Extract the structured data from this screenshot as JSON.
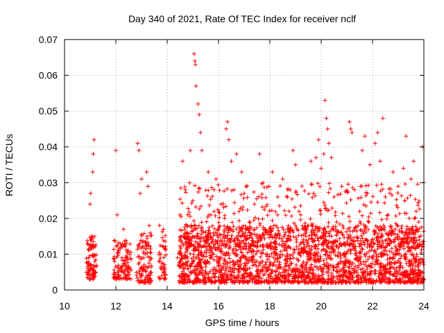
{
  "chart_data": {
    "type": "scatter",
    "title": "Day 340 of 2021, Rate Of TEC Index for receiver nclf",
    "xlabel": "GPS time / hours",
    "ylabel": "ROTI / TECUs",
    "xlim": [
      10,
      24
    ],
    "ylim": [
      0,
      0.07
    ],
    "x_ticks": [
      10,
      12,
      14,
      16,
      18,
      20,
      22,
      24
    ],
    "x_tick_labels": [
      "10",
      "12",
      "14",
      "16",
      "18",
      "20",
      "22",
      "24"
    ],
    "y_ticks": [
      0,
      0.01,
      0.02,
      0.03,
      0.04,
      0.05,
      0.06,
      0.07
    ],
    "y_tick_labels": [
      "0",
      "0.01",
      "0.02",
      "0.03",
      "0.04",
      "0.05",
      "0.06",
      "0.07"
    ],
    "grid": true,
    "marker": "+",
    "color": "#ff0000",
    "series": [
      {
        "name": "ROTI",
        "points": [
          [
            10.9,
            0.006
          ],
          [
            10.95,
            0.009
          ],
          [
            11.0,
            0.024
          ],
          [
            11.02,
            0.027
          ],
          [
            11.05,
            0.015
          ],
          [
            11.08,
            0.012
          ],
          [
            11.1,
            0.033
          ],
          [
            11.12,
            0.038
          ],
          [
            11.15,
            0.042
          ],
          [
            11.18,
            0.008
          ],
          [
            11.2,
            0.005
          ],
          [
            12.0,
            0.039
          ],
          [
            12.05,
            0.021
          ],
          [
            11.95,
            0.008
          ],
          [
            12.1,
            0.006
          ],
          [
            12.2,
            0.012
          ],
          [
            12.3,
            0.017
          ],
          [
            12.4,
            0.009
          ],
          [
            12.5,
            0.005
          ],
          [
            12.85,
            0.041
          ],
          [
            12.9,
            0.039
          ],
          [
            12.95,
            0.027
          ],
          [
            13.0,
            0.031
          ],
          [
            13.05,
            0.012
          ],
          [
            13.1,
            0.007
          ],
          [
            13.2,
            0.033
          ],
          [
            13.25,
            0.029
          ],
          [
            13.3,
            0.018
          ],
          [
            13.35,
            0.005
          ],
          [
            13.7,
            0.018
          ],
          [
            13.75,
            0.01
          ],
          [
            13.8,
            0.004
          ],
          [
            13.85,
            0.017
          ],
          [
            13.9,
            0.007
          ],
          [
            14.4,
            0.009
          ],
          [
            14.5,
            0.021
          ],
          [
            14.6,
            0.036
          ],
          [
            14.7,
            0.028
          ],
          [
            14.8,
            0.015
          ],
          [
            14.9,
            0.039
          ],
          [
            15.0,
            0.025
          ],
          [
            15.05,
            0.066
          ],
          [
            15.08,
            0.064
          ],
          [
            15.1,
            0.063
          ],
          [
            15.12,
            0.057
          ],
          [
            15.2,
            0.052
          ],
          [
            15.25,
            0.049
          ],
          [
            15.3,
            0.044
          ],
          [
            15.35,
            0.039
          ],
          [
            15.4,
            0.016
          ],
          [
            15.5,
            0.008
          ],
          [
            15.6,
            0.033
          ],
          [
            15.7,
            0.021
          ],
          [
            15.8,
            0.012
          ],
          [
            15.9,
            0.031
          ],
          [
            16.0,
            0.017
          ],
          [
            16.1,
            0.024
          ],
          [
            16.3,
            0.045
          ],
          [
            16.35,
            0.047
          ],
          [
            16.4,
            0.042
          ],
          [
            16.5,
            0.036
          ],
          [
            16.6,
            0.028
          ],
          [
            16.7,
            0.038
          ],
          [
            16.8,
            0.022
          ],
          [
            16.9,
            0.033
          ],
          [
            17.0,
            0.027
          ],
          [
            17.2,
            0.019
          ],
          [
            17.4,
            0.024
          ],
          [
            17.6,
            0.038
          ],
          [
            17.8,
            0.017
          ],
          [
            17.9,
            0.012
          ],
          [
            18.1,
            0.033
          ],
          [
            18.3,
            0.026
          ],
          [
            18.5,
            0.031
          ],
          [
            18.7,
            0.028
          ],
          [
            18.9,
            0.039
          ],
          [
            19.0,
            0.035
          ],
          [
            19.2,
            0.021
          ],
          [
            19.4,
            0.015
          ],
          [
            19.6,
            0.036
          ],
          [
            19.7,
            0.027
          ],
          [
            19.8,
            0.037
          ],
          [
            19.9,
            0.042
          ],
          [
            20.0,
            0.034
          ],
          [
            20.1,
            0.038
          ],
          [
            20.15,
            0.053
          ],
          [
            20.2,
            0.048
          ],
          [
            20.25,
            0.045
          ],
          [
            20.3,
            0.041
          ],
          [
            20.4,
            0.037
          ],
          [
            20.5,
            0.026
          ],
          [
            20.6,
            0.019
          ],
          [
            20.8,
            0.029
          ],
          [
            21.1,
            0.047
          ],
          [
            21.15,
            0.045
          ],
          [
            21.2,
            0.044
          ],
          [
            21.3,
            0.028
          ],
          [
            21.5,
            0.022
          ],
          [
            21.6,
            0.039
          ],
          [
            21.7,
            0.043
          ],
          [
            21.8,
            0.027
          ],
          [
            21.9,
            0.035
          ],
          [
            22.1,
            0.041
          ],
          [
            22.2,
            0.044
          ],
          [
            22.3,
            0.036
          ],
          [
            22.4,
            0.048
          ],
          [
            22.5,
            0.026
          ],
          [
            22.6,
            0.021
          ],
          [
            22.8,
            0.033
          ],
          [
            23.0,
            0.029
          ],
          [
            23.2,
            0.034
          ],
          [
            23.3,
            0.043
          ],
          [
            23.5,
            0.031
          ],
          [
            23.6,
            0.036
          ],
          [
            23.7,
            0.022
          ],
          [
            23.8,
            0.019
          ],
          [
            23.95,
            0.04
          ],
          [
            24.0,
            0.03
          ]
        ]
      }
    ],
    "dense_bands": [
      {
        "x_range": [
          10.85,
          11.25
        ],
        "y_range": [
          0.003,
          0.015
        ],
        "count": 90
      },
      {
        "x_range": [
          11.9,
          12.6
        ],
        "y_range": [
          0.003,
          0.014
        ],
        "count": 110
      },
      {
        "x_range": [
          12.8,
          13.4
        ],
        "y_range": [
          0.002,
          0.016
        ],
        "count": 110
      },
      {
        "x_range": [
          13.65,
          13.95
        ],
        "y_range": [
          0.003,
          0.017
        ],
        "count": 40
      },
      {
        "x_range": [
          14.45,
          24.0
        ],
        "y_range": [
          0.002,
          0.018
        ],
        "count": 2200
      },
      {
        "x_range": [
          14.45,
          24.0
        ],
        "y_range": [
          0.012,
          0.03
        ],
        "count": 450
      }
    ]
  }
}
